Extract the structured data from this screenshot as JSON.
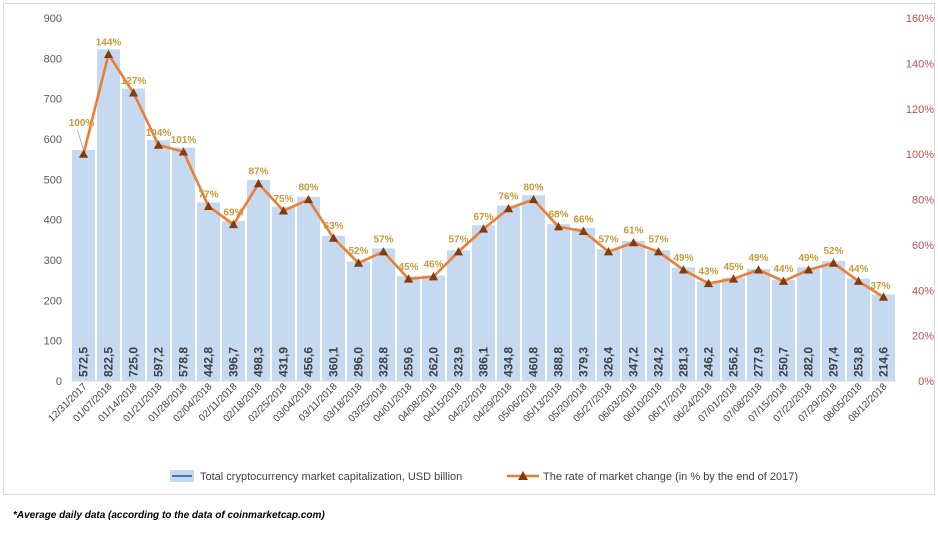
{
  "chart_data": {
    "type": "bar",
    "categories": [
      "12/31/2017",
      "01/07/2018",
      "01/14/2018",
      "01/21/2018",
      "01/28/2018",
      "02/04/2018",
      "02/11/2018",
      "02/18/2018",
      "02/25/2018",
      "03/04/2018",
      "03/11/2018",
      "03/18/2018",
      "03/25/2018",
      "04/01/2018",
      "04/08/2018",
      "04/15/2018",
      "04/22/2018",
      "04/29/2018",
      "05/06/2018",
      "05/13/2018",
      "05/20/2018",
      "05/27/2018",
      "06/03/2018",
      "06/10/2018",
      "06/17/2018",
      "06/24/2018",
      "07/01/2018",
      "07/08/2018",
      "07/15/2018",
      "07/22/2018",
      "07/29/2018",
      "08/05/2018",
      "08/12/2018"
    ],
    "series": [
      {
        "name": "Total cryptocurrency market capitalization, USD billion",
        "type": "bar",
        "axis": "left",
        "color": "#c5d9f1",
        "values": [
          572.5,
          822.5,
          725.0,
          597.2,
          578.8,
          442.8,
          396.7,
          498.3,
          431.9,
          456.6,
          360.1,
          296.0,
          328.8,
          259.6,
          262.0,
          323.9,
          386.1,
          434.8,
          460.8,
          388.8,
          379.3,
          326.4,
          347.2,
          324.2,
          281.3,
          246.2,
          256.2,
          277.9,
          250.7,
          282.0,
          297.4,
          253.8,
          214.6
        ],
        "labels": [
          "572,5",
          "822,5",
          "725,0",
          "597,2",
          "578,8",
          "442,8",
          "396,7",
          "498,3",
          "431,9",
          "456,6",
          "360,1",
          "296,0",
          "328,8",
          "259,6",
          "262,0",
          "323,9",
          "386,1",
          "434,8",
          "460,8",
          "388,8",
          "379,3",
          "326,4",
          "347,2",
          "324,2",
          "281,3",
          "246,2",
          "256,2",
          "277,9",
          "250,7",
          "282,0",
          "297,4",
          "253,8",
          "214,6"
        ]
      },
      {
        "name": "The rate of market change (in % by the end of 2017)",
        "type": "line",
        "axis": "right",
        "color": "#ed7d31",
        "marker_color": "#843c0c",
        "values": [
          100,
          144,
          127,
          104,
          101,
          77,
          69,
          87,
          75,
          80,
          63,
          52,
          57,
          45,
          46,
          57,
          67,
          76,
          80,
          68,
          66,
          57,
          61,
          57,
          49,
          43,
          45,
          49,
          44,
          49,
          52,
          44,
          37
        ],
        "labels": [
          "100%",
          "144%",
          "127%",
          "104%",
          "101%",
          "77%",
          "69%",
          "87%",
          "75%",
          "80%",
          "63%",
          "52%",
          "57%",
          "45%",
          "46%",
          "57%",
          "67%",
          "76%",
          "80%",
          "68%",
          "66%",
          "57%",
          "61%",
          "57%",
          "49%",
          "43%",
          "45%",
          "49%",
          "44%",
          "49%",
          "52%",
          "44%",
          "37%"
        ]
      }
    ],
    "y_left": {
      "ylim": [
        0,
        900
      ],
      "ticks": [
        "0",
        "100",
        "200",
        "300",
        "400",
        "500",
        "600",
        "700",
        "800",
        "900"
      ]
    },
    "y_right": {
      "ylim": [
        0,
        160
      ],
      "ticks": [
        "0%",
        "20%",
        "40%",
        "60%",
        "80%",
        "100%",
        "120%",
        "140%",
        "160%"
      ]
    },
    "legend": "bottom",
    "grid": false
  },
  "footnote": "*Average daily data (according to the data of coinmarketcap.com)"
}
